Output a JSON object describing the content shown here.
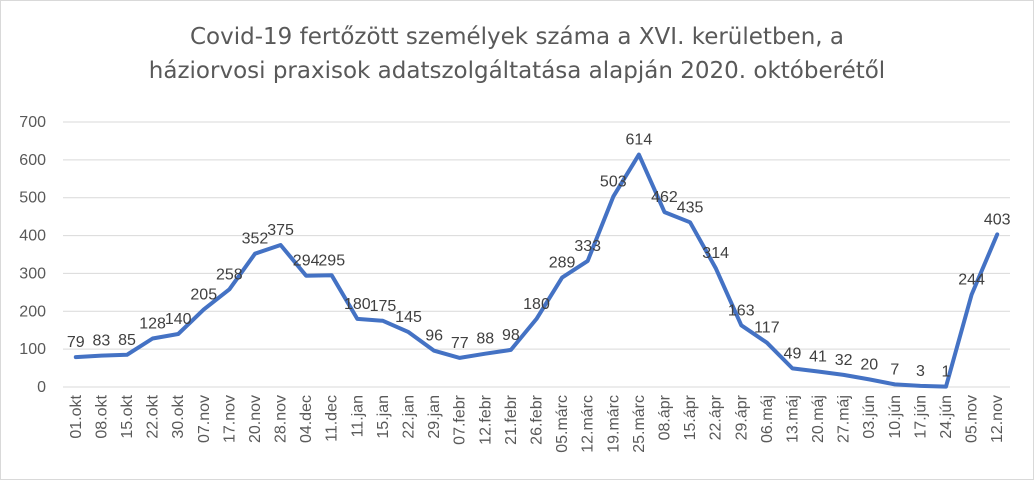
{
  "chart_data": {
    "type": "line",
    "title_line1": "Covid-19 fertőzött személyek száma a XVI. kerületben, a",
    "title_line2": "háziorvosi praxisok adatszolgáltatása alapján 2020. októberétől",
    "categories": [
      "01.okt",
      "08.okt",
      "15.okt",
      "22.okt",
      "30.okt",
      "07.nov",
      "17.nov",
      "20.nov",
      "28.nov",
      "04.dec",
      "11.dec",
      "11.jan",
      "15.jan",
      "22.jan",
      "29.jan",
      "07.febr",
      "12.febr",
      "21.febr",
      "26.febr",
      "05.márc",
      "12.márc",
      "19.márc",
      "25.márc",
      "08.ápr",
      "15.ápr",
      "22.ápr",
      "29.ápr",
      "06.máj",
      "13.máj",
      "20.máj",
      "27.máj",
      "03.jún",
      "10.jún",
      "17.jún",
      "24.jún",
      "05.nov",
      "12.nov"
    ],
    "values": [
      79,
      83,
      85,
      128,
      140,
      205,
      258,
      352,
      375,
      294,
      295,
      180,
      175,
      145,
      96,
      77,
      88,
      98,
      180,
      289,
      333,
      503,
      614,
      462,
      435,
      314,
      163,
      117,
      49,
      41,
      32,
      20,
      7,
      3,
      1,
      244,
      403
    ],
    "y_ticks": [
      "0",
      "100",
      "200",
      "300",
      "400",
      "500",
      "600",
      "700"
    ],
    "ylim": [
      0,
      700
    ],
    "grid": true,
    "legend": "none",
    "line_color": "#4472c4",
    "grid_color": "#d9d9d9"
  }
}
